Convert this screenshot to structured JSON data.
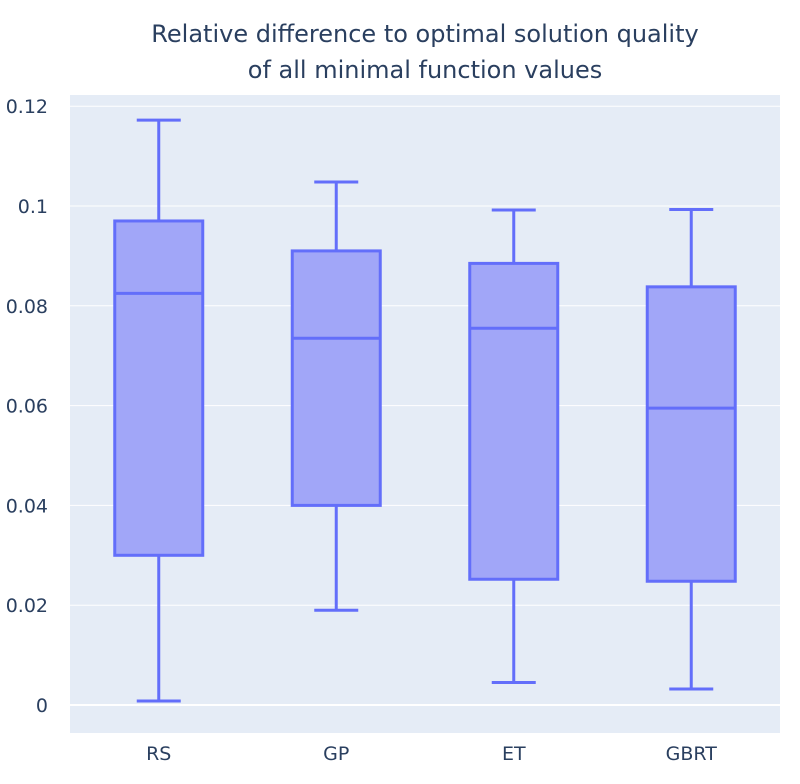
{
  "chart_data": {
    "type": "box",
    "title_lines": [
      "Relative difference to optimal solution quality",
      "of all minimal function values"
    ],
    "xlabel": "",
    "ylabel": "",
    "categories": [
      "RS",
      "GP",
      "ET",
      "GBRT"
    ],
    "ylim": [
      -0.005,
      0.122
    ],
    "y_ticks": [
      0,
      0.02,
      0.04,
      0.06,
      0.08,
      0.1,
      0.12
    ],
    "y_tick_labels": [
      "0",
      "0.02",
      "0.04",
      "0.06",
      "0.08",
      "0.1",
      "0.12"
    ],
    "grid": true,
    "boxes": [
      {
        "category": "RS",
        "lower_whisker": 0.0008,
        "q1": 0.03,
        "median": 0.0825,
        "q3": 0.097,
        "upper_whisker": 0.1172
      },
      {
        "category": "GP",
        "lower_whisker": 0.019,
        "q1": 0.04,
        "median": 0.0735,
        "q3": 0.091,
        "upper_whisker": 0.1048
      },
      {
        "category": "ET",
        "lower_whisker": 0.0045,
        "q1": 0.0252,
        "median": 0.0755,
        "q3": 0.0885,
        "upper_whisker": 0.0992
      },
      {
        "category": "GBRT",
        "lower_whisker": 0.0032,
        "q1": 0.0248,
        "median": 0.0595,
        "q3": 0.0838,
        "upper_whisker": 0.0993
      }
    ],
    "colors": {
      "plot_background": "#e5ecf6",
      "grid": "#ffffff",
      "box_line": "#636efa",
      "box_fill": "#a1a6f8",
      "text": "#2a3f5f"
    }
  }
}
